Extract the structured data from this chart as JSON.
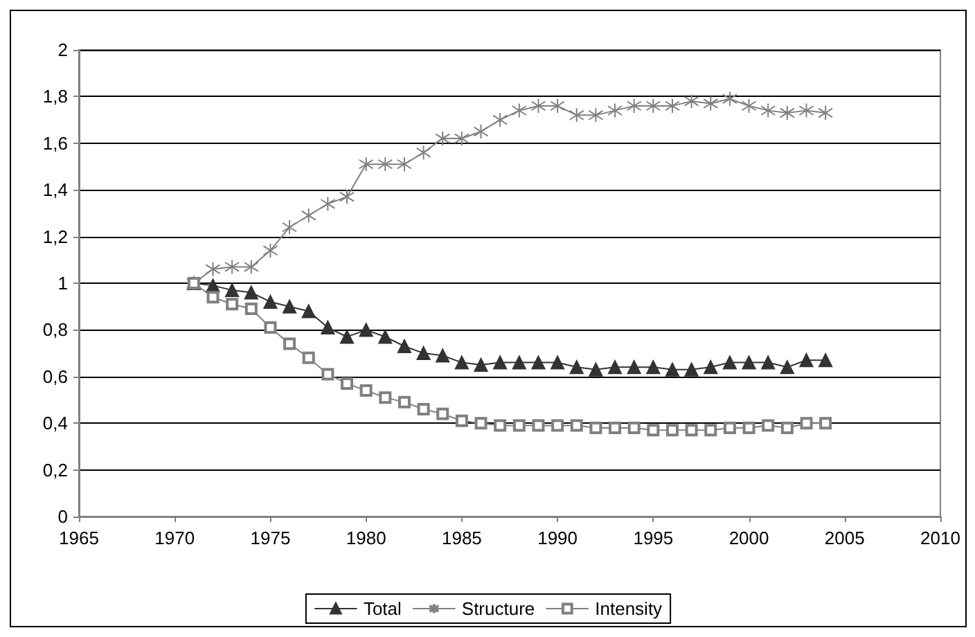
{
  "chart_data": {
    "type": "line",
    "x": [
      1971,
      1972,
      1973,
      1974,
      1975,
      1976,
      1977,
      1978,
      1979,
      1980,
      1981,
      1982,
      1983,
      1984,
      1985,
      1986,
      1987,
      1988,
      1989,
      1990,
      1991,
      1992,
      1993,
      1994,
      1995,
      1996,
      1997,
      1998,
      1999,
      2000,
      2001,
      2002,
      2003,
      2004
    ],
    "series": [
      {
        "name": "Total",
        "color": "#333333",
        "marker": "triangle",
        "values": [
          1.0,
          0.99,
          0.97,
          0.96,
          0.92,
          0.9,
          0.88,
          0.81,
          0.77,
          0.8,
          0.77,
          0.73,
          0.7,
          0.69,
          0.66,
          0.65,
          0.66,
          0.66,
          0.66,
          0.66,
          0.64,
          0.63,
          0.64,
          0.64,
          0.64,
          0.63,
          0.63,
          0.64,
          0.66,
          0.66,
          0.66,
          0.64,
          0.67,
          0.67
        ]
      },
      {
        "name": "Structure",
        "color": "#808080",
        "marker": "cross",
        "values": [
          1.0,
          1.06,
          1.07,
          1.07,
          1.14,
          1.24,
          1.29,
          1.34,
          1.37,
          1.51,
          1.51,
          1.51,
          1.56,
          1.62,
          1.62,
          1.65,
          1.7,
          1.74,
          1.76,
          1.76,
          1.72,
          1.72,
          1.74,
          1.76,
          1.76,
          1.76,
          1.78,
          1.77,
          1.79,
          1.76,
          1.74,
          1.73,
          1.74,
          1.73
        ]
      },
      {
        "name": "Intensity",
        "color": "#808080",
        "marker": "square",
        "values": [
          1.0,
          0.94,
          0.91,
          0.89,
          0.81,
          0.74,
          0.68,
          0.61,
          0.57,
          0.54,
          0.51,
          0.49,
          0.46,
          0.44,
          0.41,
          0.4,
          0.39,
          0.39,
          0.39,
          0.39,
          0.39,
          0.38,
          0.38,
          0.38,
          0.37,
          0.37,
          0.37,
          0.37,
          0.38,
          0.38,
          0.39,
          0.38,
          0.4,
          0.4
        ]
      }
    ],
    "xlim": [
      1965,
      2010
    ],
    "xticks": [
      1965,
      1970,
      1975,
      1980,
      1985,
      1990,
      1995,
      2000,
      2005,
      2010
    ],
    "ylim": [
      0,
      2
    ],
    "yticks": [
      0,
      {
        "value": 0.2,
        "label": "0,2"
      },
      {
        "value": 0.4,
        "label": "0,4"
      },
      {
        "value": 0.6,
        "label": "0,6"
      },
      {
        "value": 0.8,
        "label": "0,8"
      },
      1,
      {
        "value": 1.2,
        "label": "1,2"
      },
      {
        "value": 1.4,
        "label": "1,4"
      },
      {
        "value": 1.6,
        "label": "1,6"
      },
      {
        "value": 1.8,
        "label": "1,8"
      },
      2
    ],
    "grid": "y",
    "legend": "bottom",
    "line_style": "solid"
  }
}
